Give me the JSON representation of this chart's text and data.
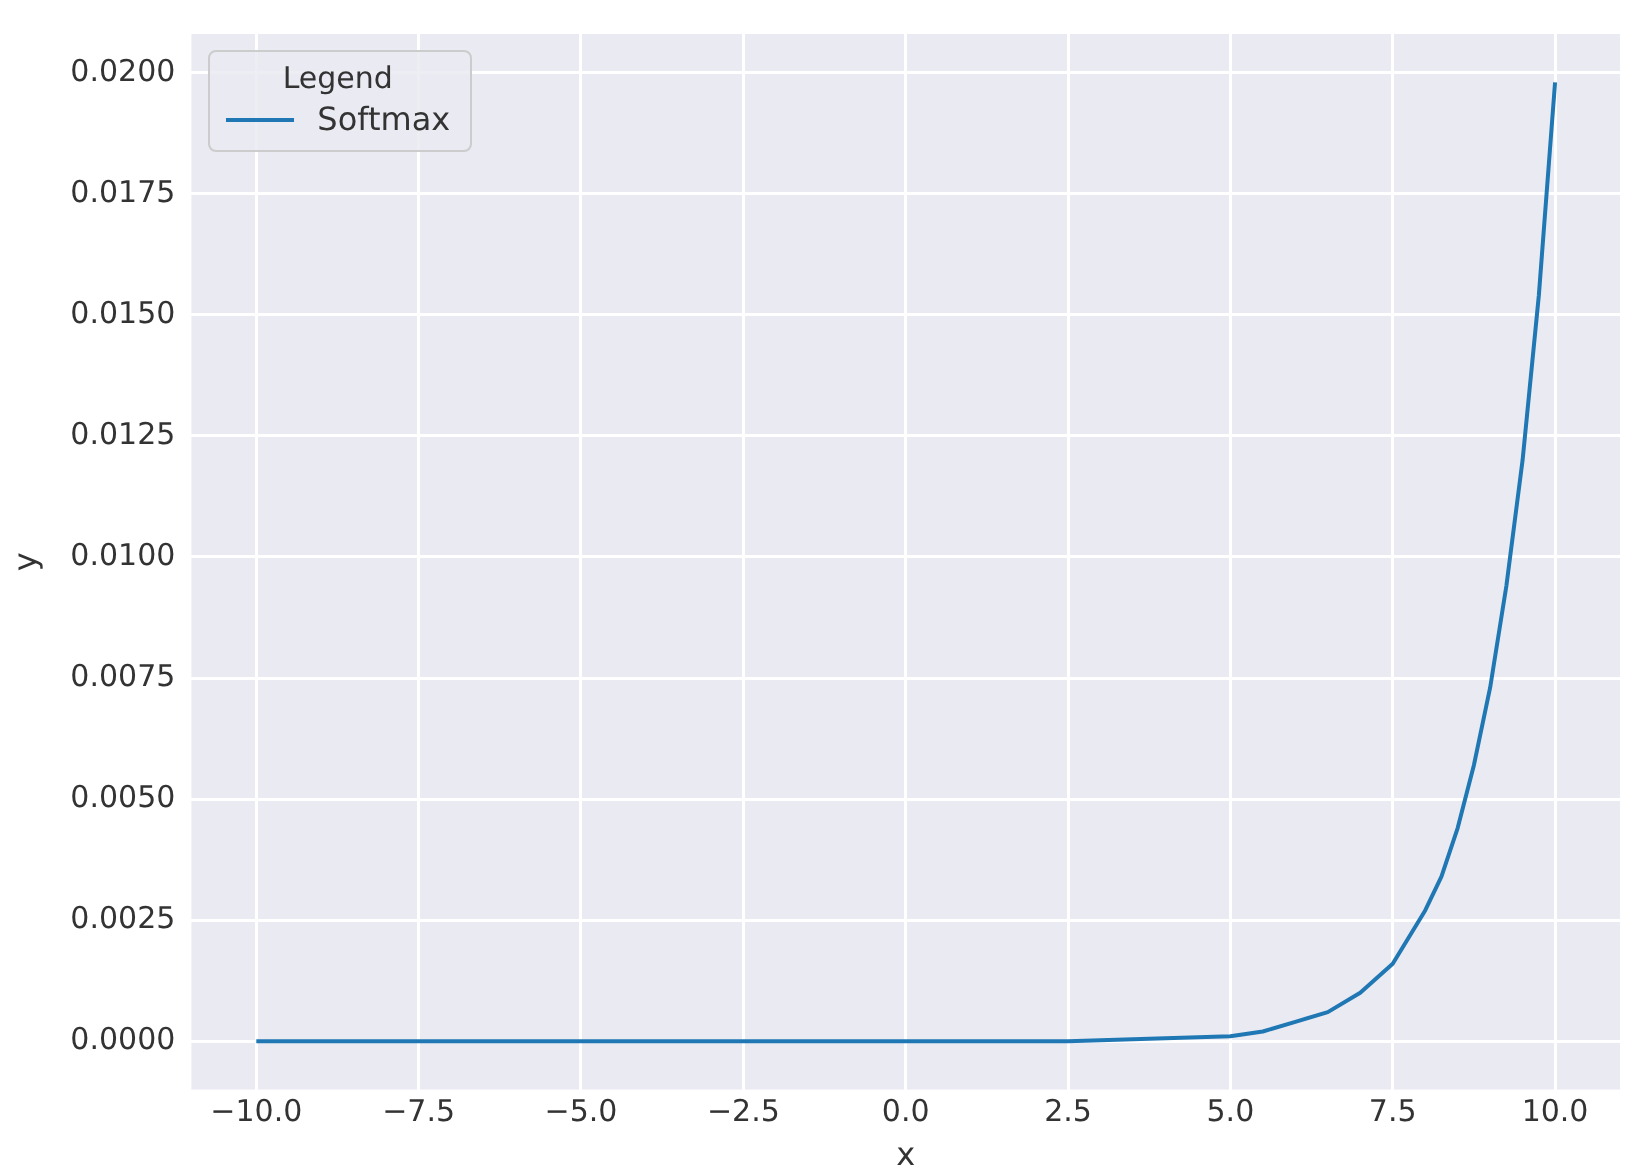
{
  "chart_data": {
    "type": "line",
    "xlabel": "x",
    "ylabel": "y",
    "legend_title": "Legend",
    "legend": "top left",
    "grid": true,
    "series": [
      {
        "name": "Softmax",
        "color": "#1f77b4",
        "x": [
          -10,
          -7.5,
          -5,
          -2.5,
          0,
          2.5,
          5,
          5.5,
          6,
          6.5,
          7,
          7.5,
          8,
          8.25,
          8.5,
          8.75,
          9,
          9.25,
          9.5,
          9.75,
          10
        ],
        "values": [
          0,
          0,
          0,
          0,
          0,
          0,
          0.0001,
          0.0002,
          0.0004,
          0.0006,
          0.001,
          0.0016,
          0.0027,
          0.0034,
          0.0044,
          0.0057,
          0.0073,
          0.0094,
          0.012,
          0.0154,
          0.0198
        ]
      }
    ],
    "xlim": [
      -11,
      11
    ],
    "ylim": [
      -0.001,
      0.0208
    ],
    "xticks": [
      {
        "value": -10,
        "label": "−10.0"
      },
      {
        "value": -7.5,
        "label": "−7.5"
      },
      {
        "value": -5,
        "label": "−5.0"
      },
      {
        "value": -2.5,
        "label": "−2.5"
      },
      {
        "value": 0,
        "label": "0.0"
      },
      {
        "value": 2.5,
        "label": "2.5"
      },
      {
        "value": 5,
        "label": "5.0"
      },
      {
        "value": 7.5,
        "label": "7.5"
      },
      {
        "value": 10,
        "label": "10.0"
      }
    ],
    "yticks": [
      {
        "value": 0,
        "label": "0.0000"
      },
      {
        "value": 0.0025,
        "label": "0.0025"
      },
      {
        "value": 0.005,
        "label": "0.0050"
      },
      {
        "value": 0.0075,
        "label": "0.0075"
      },
      {
        "value": 0.01,
        "label": "0.0100"
      },
      {
        "value": 0.0125,
        "label": "0.0125"
      },
      {
        "value": 0.015,
        "label": "0.0150"
      },
      {
        "value": 0.0175,
        "label": "0.0175"
      },
      {
        "value": 0.02,
        "label": "0.0200"
      }
    ]
  }
}
